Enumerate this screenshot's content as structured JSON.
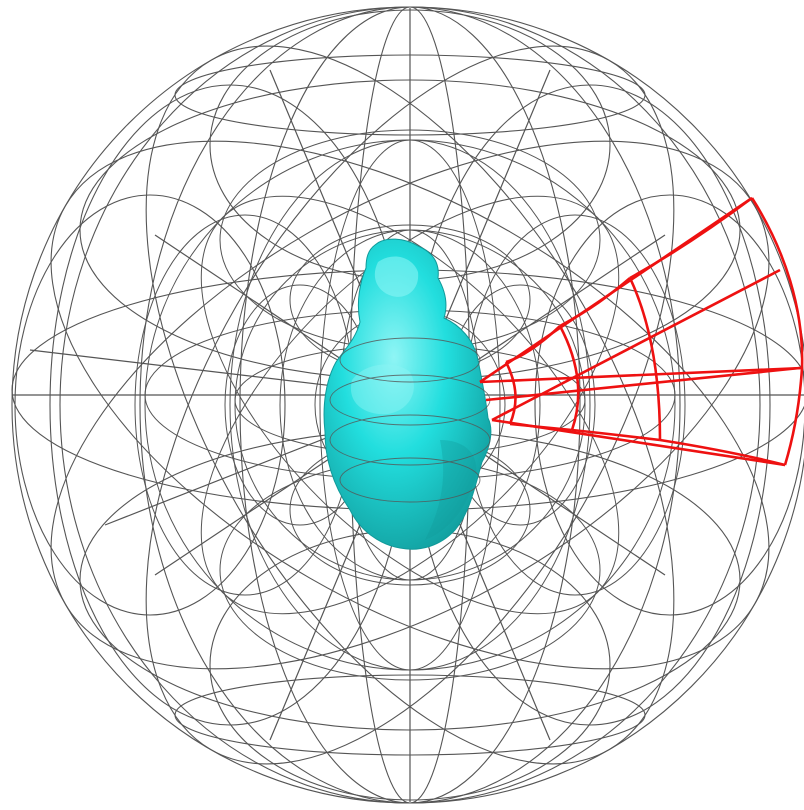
{
  "figure": {
    "background_color": "#ffffff",
    "wireframe_color": "#555555",
    "highlight_color": "#ee1111",
    "blob_color": "#22dede",
    "blob_shade_color": "#119a9a",
    "blob_highlight_color": "#8ff5f5"
  }
}
